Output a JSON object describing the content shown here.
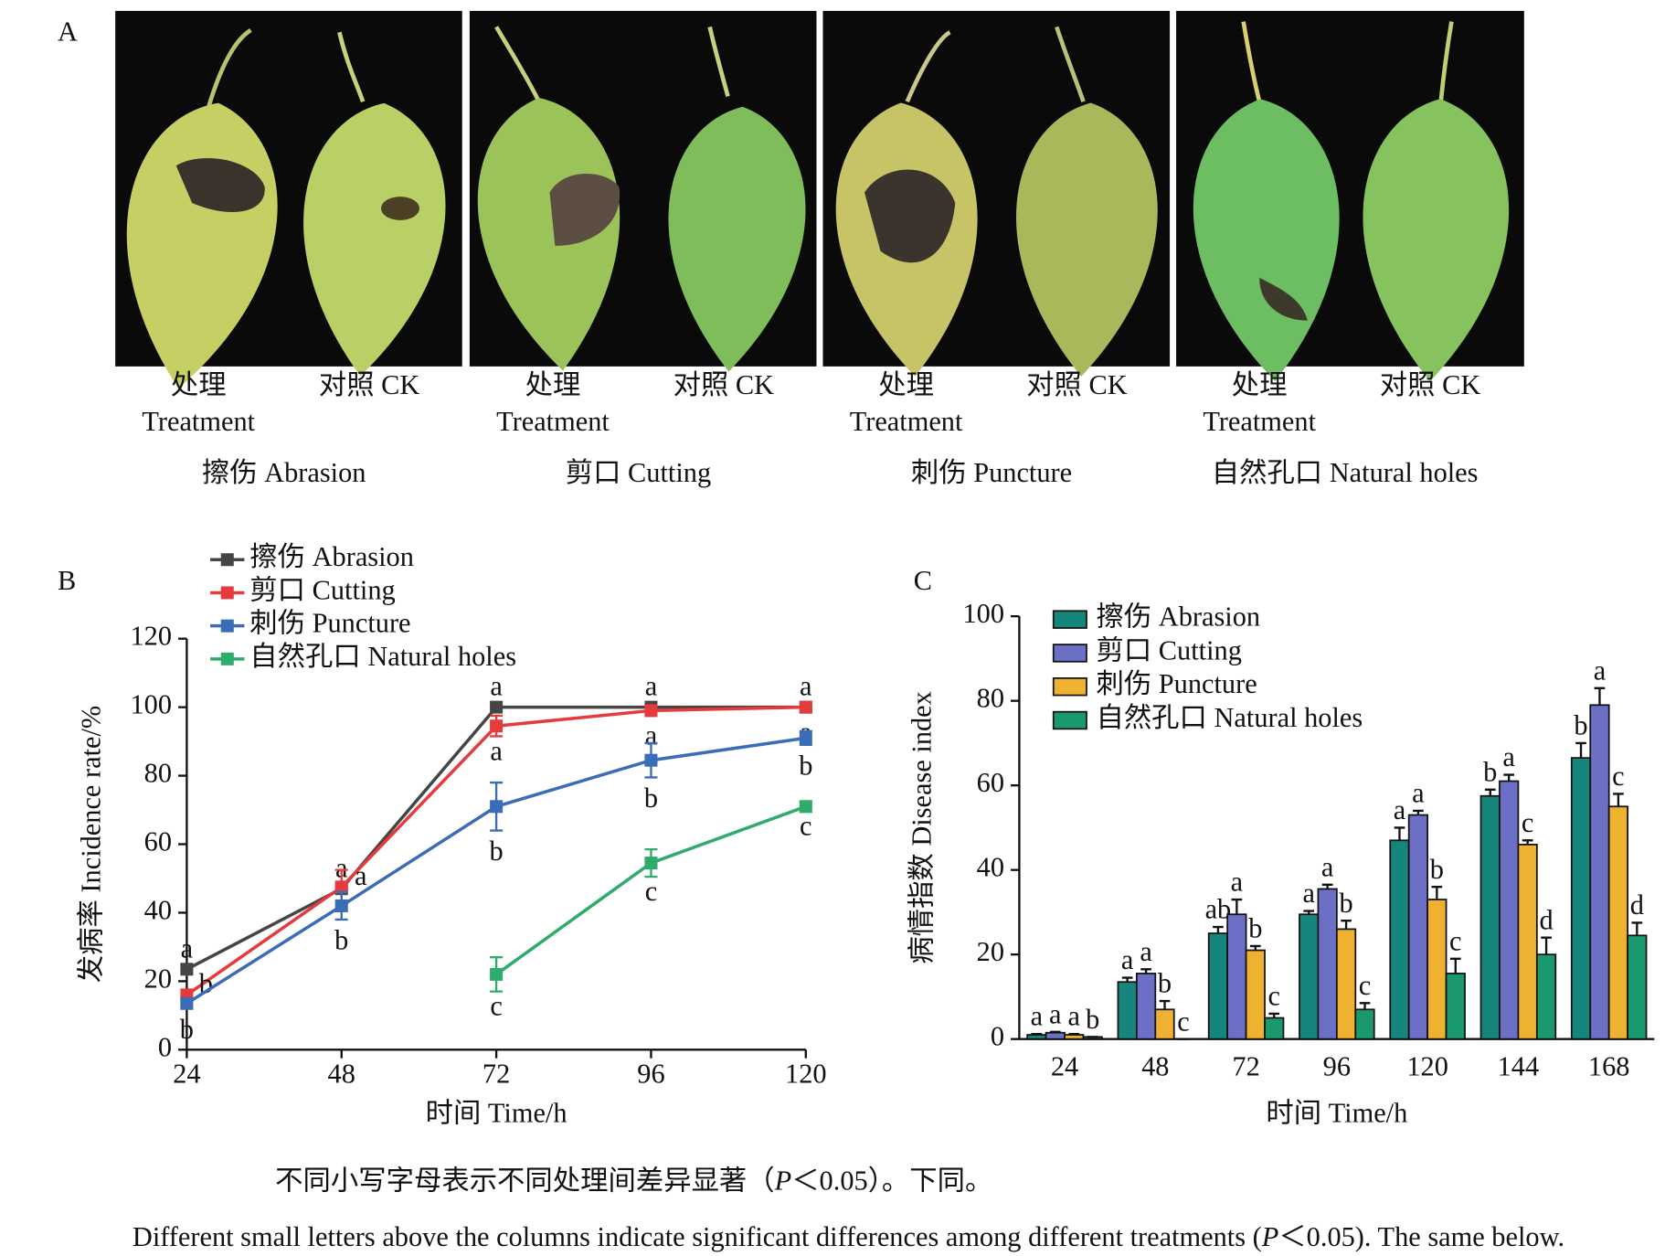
{
  "panel_labels": [
    "A",
    "B",
    "C"
  ],
  "panel_a": [
    {
      "treatment_cn": "处理",
      "treatment_en": "Treatment",
      "control": "对照 CK",
      "caption": "擦伤 Abrasion"
    },
    {
      "treatment_cn": "处理",
      "treatment_en": "Treatment",
      "control": "对照 CK",
      "caption": "剪口 Cutting"
    },
    {
      "treatment_cn": "处理",
      "treatment_en": "Treatment",
      "control": "对照 CK",
      "caption": "刺伤 Puncture"
    },
    {
      "treatment_cn": "处理",
      "treatment_en": "Treatment",
      "control": "对照 CK",
      "caption": "自然孔口 Natural holes"
    }
  ],
  "chart_data": [
    {
      "type": "line",
      "x_label": "时间 Time/h",
      "y_label": "发病率 Incidence rate/%",
      "x": [
        24,
        48,
        72,
        96,
        120
      ],
      "xlim": [
        24,
        120
      ],
      "xticks": [
        24,
        48,
        72,
        96,
        120
      ],
      "ylim": [
        0,
        120
      ],
      "yticks": [
        0,
        20,
        40,
        60,
        80,
        100,
        120
      ],
      "series": [
        {
          "name": "擦伤 Abrasion",
          "color": "#454545",
          "values": [
            23.5,
            47,
            100,
            100,
            100
          ],
          "errors": [
            null,
            null,
            null,
            null,
            null
          ],
          "letters": [
            "a",
            "a",
            "a",
            "a",
            "a"
          ]
        },
        {
          "name": "剪口 Cutting",
          "color": "#e63b3c",
          "values": [
            16,
            47.5,
            94.5,
            99,
            100
          ],
          "errors": [
            1.5,
            5,
            3,
            1.5,
            0.5
          ],
          "letters": [
            "b",
            "a",
            "a",
            "a",
            "a"
          ]
        },
        {
          "name": "刺伤 Puncture",
          "color": "#3b6cb7",
          "values": [
            13.5,
            42,
            71,
            84.5,
            91
          ],
          "errors": [
            1.5,
            4,
            7,
            5,
            2
          ],
          "letters": [
            "b",
            "b",
            "b",
            "b",
            "b"
          ]
        },
        {
          "name": "自然孔口 Natural holes",
          "color": "#2fab6b",
          "values": [
            null,
            null,
            22,
            54.5,
            71
          ],
          "errors": [
            null,
            null,
            5,
            4,
            1.5
          ],
          "letters": [
            null,
            null,
            "c",
            "c",
            "c"
          ]
        }
      ]
    },
    {
      "type": "bar",
      "x_label": "时间 Time/h",
      "y_label": "病情指数 Disease index",
      "categories": [
        "24",
        "48",
        "72",
        "96",
        "120",
        "144",
        "168"
      ],
      "ylim": [
        0,
        100
      ],
      "yticks": [
        0,
        20,
        40,
        60,
        80,
        100
      ],
      "series": [
        {
          "name": "擦伤 Abrasion",
          "color": "#16857b",
          "values": [
            1,
            13.5,
            25,
            29.5,
            47,
            57.5,
            66.5
          ],
          "errors": [
            0.2,
            1,
            1.5,
            0.8,
            3,
            1.5,
            3.5
          ],
          "letters": [
            "a",
            "a",
            "ab",
            "a",
            "a",
            "b",
            "b"
          ]
        },
        {
          "name": "剪口 Cutting",
          "color": "#6b70c6",
          "values": [
            1.5,
            15.5,
            29.5,
            35.5,
            53,
            61,
            79
          ],
          "errors": [
            0.2,
            1,
            3.5,
            1,
            1,
            1.5,
            4
          ],
          "letters": [
            "a",
            "a",
            "a",
            "a",
            "a",
            "a",
            "a"
          ]
        },
        {
          "name": "刺伤 Puncture",
          "color": "#efb230",
          "values": [
            1,
            7,
            21,
            26,
            33,
            46,
            55
          ],
          "errors": [
            0.2,
            2,
            1,
            2,
            3,
            1,
            3
          ],
          "letters": [
            "a",
            "b",
            "b",
            "b",
            "b",
            "c",
            "c"
          ]
        },
        {
          "name": "自然孔口 Natural holes",
          "color": "#1a9a6c",
          "values": [
            0.5,
            0,
            5,
            7,
            15.5,
            20,
            24.5
          ],
          "errors": [
            0,
            0,
            1,
            1.5,
            3.5,
            4,
            3
          ],
          "letters": [
            "b",
            "c",
            "c",
            "c",
            "c",
            "d",
            "d"
          ]
        }
      ]
    }
  ],
  "caption": {
    "cn": [
      "不同小写字母表示不同处理间差异显著（",
      "P",
      "＜0.05）。下同。"
    ],
    "en": [
      "Different small letters above the columns indicate significant differences among different treatments (",
      "P",
      "＜0.05). The same below."
    ]
  }
}
